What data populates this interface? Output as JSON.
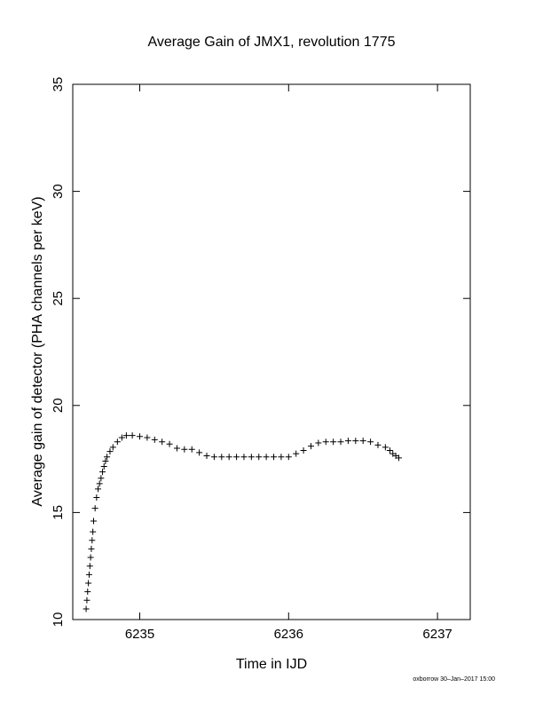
{
  "chart_data": {
    "type": "scatter",
    "title": "Average Gain of JMX1, revolution 1775",
    "xlabel": "Time in IJD",
    "ylabel": "Average gain of detector (PHA channels per keV)",
    "xlim": [
      6234.55,
      6237.22
    ],
    "ylim": [
      10,
      35
    ],
    "xticks": [
      6235,
      6236,
      6237
    ],
    "yticks": [
      10,
      15,
      20,
      25,
      30,
      35
    ],
    "grid": false,
    "marker": "plus",
    "x": [
      6234.64,
      6234.645,
      6234.65,
      6234.655,
      6234.66,
      6234.665,
      6234.67,
      6234.675,
      6234.68,
      6234.685,
      6234.69,
      6234.7,
      6234.71,
      6234.72,
      6234.73,
      6234.74,
      6234.75,
      6234.76,
      6234.77,
      6234.78,
      6234.8,
      6234.82,
      6234.85,
      6234.88,
      6234.91,
      6234.95,
      6235.0,
      6235.05,
      6235.1,
      6235.15,
      6235.2,
      6235.25,
      6235.3,
      6235.35,
      6235.4,
      6235.45,
      6235.5,
      6235.55,
      6235.6,
      6235.65,
      6235.7,
      6235.75,
      6235.8,
      6235.85,
      6235.9,
      6235.95,
      6236.0,
      6236.05,
      6236.1,
      6236.15,
      6236.2,
      6236.25,
      6236.3,
      6236.35,
      6236.4,
      6236.45,
      6236.5,
      6236.55,
      6236.6,
      6236.65,
      6236.68,
      6236.7,
      6236.72,
      6236.74
    ],
    "y": [
      10.5,
      10.9,
      11.3,
      11.7,
      12.1,
      12.5,
      12.9,
      13.3,
      13.7,
      14.1,
      14.6,
      15.2,
      15.7,
      16.1,
      16.35,
      16.6,
      16.9,
      17.15,
      17.4,
      17.6,
      17.85,
      18.05,
      18.3,
      18.5,
      18.6,
      18.6,
      18.55,
      18.5,
      18.4,
      18.3,
      18.2,
      18.0,
      17.95,
      17.95,
      17.8,
      17.65,
      17.6,
      17.6,
      17.6,
      17.6,
      17.6,
      17.6,
      17.6,
      17.6,
      17.6,
      17.6,
      17.6,
      17.75,
      17.9,
      18.1,
      18.25,
      18.3,
      18.3,
      18.3,
      18.35,
      18.35,
      18.35,
      18.3,
      18.15,
      18.05,
      17.9,
      17.75,
      17.65,
      17.55
    ]
  },
  "footer": {
    "credit": "oxborrow 30–Jan–2017 15:00"
  }
}
